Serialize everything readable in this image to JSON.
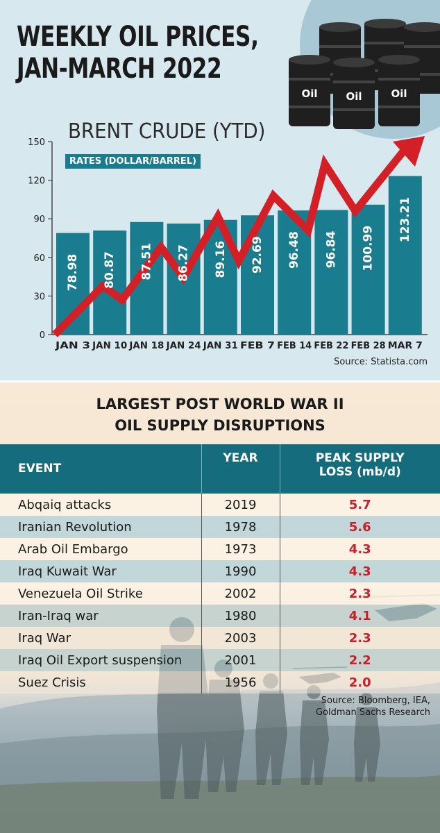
{
  "title": {
    "line1": "WEEKLY OIL PRICES,",
    "line2": "JAN-MARCH 2022"
  },
  "barrels": {
    "label": "Oil",
    "icon": "oil-barrel-icon"
  },
  "colors": {
    "bar": "#1a7c8f",
    "arrow": "#d32027",
    "header": "#146c7d",
    "loss": "#c8202a"
  },
  "chart_data": {
    "type": "bar",
    "title": "BRENT CRUDE  (YTD)",
    "unit_label": "RATES (DOLLAR/BARREL)",
    "categories": [
      "JAN 3",
      "JAN 10",
      "JAN 18",
      "JAN 24",
      "JAN 31",
      "FEB 7",
      "FEB 14",
      "FEB 22",
      "FEB 28",
      "MAR 7"
    ],
    "values": [
      78.98,
      80.87,
      87.51,
      86.27,
      89.16,
      92.69,
      96.48,
      96.84,
      100.99,
      123.21
    ],
    "value_labels": [
      "78.98",
      "80.87",
      "87.51",
      "86.27",
      "89.16",
      "92.69",
      "96.48",
      "96.84",
      "100.99",
      "123.21"
    ],
    "ylim": [
      0,
      150
    ],
    "yticks": [
      0,
      30,
      60,
      90,
      120,
      150
    ],
    "grid": false,
    "source": "Source: Statista.com"
  },
  "disruptions": {
    "title_line1": "LARGEST POST WORLD WAR II",
    "title_line2": "OIL SUPPLY DISRUPTIONS",
    "headers": {
      "event": "EVENT",
      "year": "YEAR",
      "loss_line1": "PEAK SUPPLY",
      "loss_line2": "LOSS (mb/d)"
    },
    "rows": [
      {
        "event": "Abqaiq attacks",
        "year": "2019",
        "loss": "5.7"
      },
      {
        "event": "Iranian Revolution",
        "year": "1978",
        "loss": "5.6"
      },
      {
        "event": "Arab Oil Embargo",
        "year": "1973",
        "loss": "4.3"
      },
      {
        "event": "Iraq Kuwait War",
        "year": "1990",
        "loss": "4.3"
      },
      {
        "event": "Venezuela Oil Strike",
        "year": "2002",
        "loss": "2.3"
      },
      {
        "event": "Iran-Iraq war",
        "year": "1980",
        "loss": "4.1"
      },
      {
        "event": "Iraq War",
        "year": "2003",
        "loss": "2.3"
      },
      {
        "event": "Iraq Oil Export suspension",
        "year": "2001",
        "loss": "2.2"
      },
      {
        "event": "Suez Crisis",
        "year": "1956",
        "loss": "2.0"
      }
    ],
    "source_line1": "Source: Bloomberg, IEA,",
    "source_line2": "Goldman Sachs Research"
  }
}
